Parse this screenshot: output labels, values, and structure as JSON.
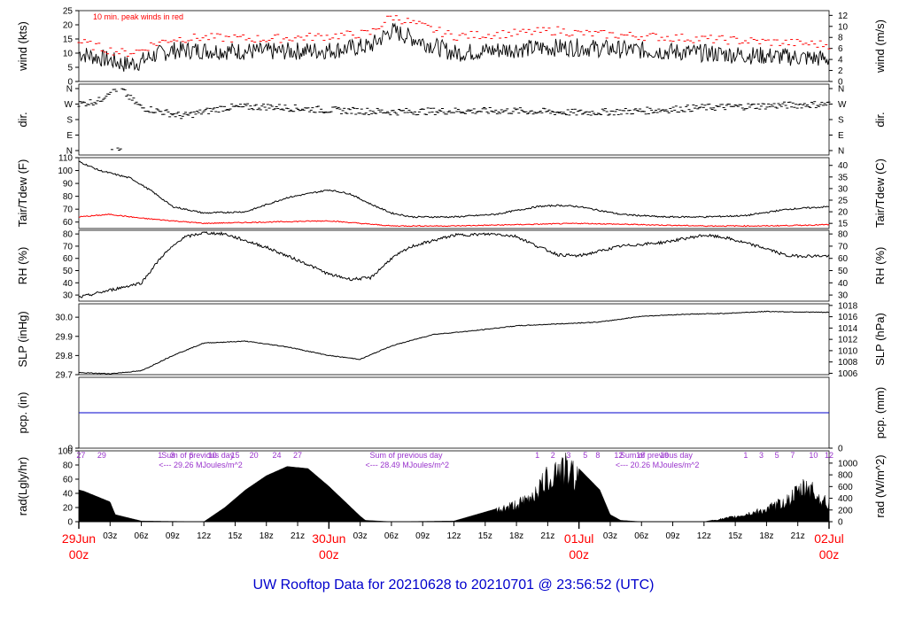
{
  "title": "UW Rooftop Data for 20210628  to  20210701 @ 23:56:52  (UTC)",
  "colors": {
    "wind_peaks": "#ff0000",
    "dewpoint": "#ff0000",
    "pcp": "#0000cc",
    "sun_annot": "#9933cc",
    "date_labels": "#ff0000",
    "title": "#0000cc"
  },
  "chart_data": [
    {
      "type": "line",
      "panel": "wind",
      "ylabel": "wind (kts)",
      "ylabel_right": "wind (m/s)",
      "ylim": [
        0,
        25
      ],
      "ylim_right": [
        0,
        12.9
      ],
      "y_ticks": [
        "0",
        "5",
        "10",
        "15",
        "20",
        "25"
      ],
      "y_ticks_right": [
        "0",
        "2",
        "4",
        "6",
        "8",
        "10",
        "12"
      ],
      "annotation": "10 min. peak winds in red",
      "series": [
        {
          "kind": "wind",
          "x": [
            0,
            3,
            4.5,
            6,
            7,
            9,
            12,
            18,
            24,
            28,
            30,
            36,
            42,
            46,
            48,
            54,
            60,
            66,
            72
          ],
          "values": [
            10,
            7.5,
            6,
            7,
            9,
            11,
            11,
            10.5,
            11,
            12.5,
            18,
            10,
            11.5,
            12,
            12,
            11,
            10,
            9,
            8
          ]
        },
        {
          "kind": "peaks",
          "x": [
            0,
            3,
            4.5,
            6,
            7,
            9,
            12,
            18,
            24,
            28,
            30,
            36,
            42,
            46,
            48,
            54,
            60,
            66,
            72
          ],
          "values": [
            14,
            11,
            10,
            11,
            13,
            15,
            15.5,
            15,
            16,
            17,
            23,
            16,
            17,
            18,
            17,
            16,
            15,
            14,
            13
          ]
        }
      ]
    },
    {
      "type": "scatter",
      "panel": "direction",
      "ylabel": "dir.",
      "ylabel_right": "dir.",
      "y_ticks": [
        "N",
        "W",
        "S",
        "E",
        "N"
      ],
      "y_ticks_right": [
        "N",
        "W",
        "S",
        "E",
        "N"
      ],
      "ylim": [
        0,
        360
      ],
      "series": [
        {
          "kind": "dir",
          "x": [
            0,
            1,
            2,
            3,
            4,
            5,
            6,
            8,
            10,
            14,
            18,
            24,
            30,
            36,
            42,
            48,
            54,
            60,
            66,
            72
          ],
          "values": [
            270,
            280,
            290,
            350,
            360,
            300,
            250,
            225,
            200,
            250,
            255,
            235,
            225,
            230,
            230,
            220,
            230,
            250,
            260,
            270
          ]
        }
      ]
    },
    {
      "type": "line",
      "panel": "temperature",
      "ylabel": "Tair/Tdew (F)",
      "ylabel_right": "Tair/Tdew (C)",
      "ylim": [
        55,
        110
      ],
      "y_ticks": [
        "60",
        "70",
        "80",
        "90",
        "100",
        "110"
      ],
      "y_ticks_right": [
        "15",
        "20",
        "25",
        "30",
        "35",
        "40"
      ],
      "series": [
        {
          "kind": "tair",
          "x": [
            0,
            2,
            5,
            7,
            9,
            12,
            16,
            20,
            24,
            26,
            28,
            30,
            32,
            36,
            40,
            44,
            46,
            48,
            52,
            56,
            60,
            64,
            68,
            72
          ],
          "values": [
            107,
            100,
            94,
            84,
            72,
            67,
            68,
            79,
            85,
            82,
            74,
            67,
            64,
            64,
            66,
            72,
            73,
            72,
            66,
            64,
            64,
            65,
            70,
            72
          ]
        },
        {
          "kind": "tdew",
          "x": [
            0,
            3,
            6,
            9,
            12,
            18,
            24,
            30,
            36,
            42,
            48,
            54,
            60,
            66,
            72
          ],
          "values": [
            64,
            66,
            63,
            61,
            59,
            60,
            61,
            57,
            57,
            58,
            59,
            58,
            57,
            57,
            58
          ]
        }
      ]
    },
    {
      "type": "line",
      "panel": "humidity",
      "ylabel": "RH (%)",
      "ylabel_right": "RH (%)",
      "ylim": [
        25,
        83
      ],
      "y_ticks": [
        "30",
        "40",
        "50",
        "60",
        "70",
        "80"
      ],
      "y_ticks_right": [
        "30",
        "40",
        "50",
        "60",
        "70",
        "80"
      ],
      "series": [
        {
          "kind": "rh",
          "x": [
            0,
            3,
            6,
            8,
            10,
            12,
            14,
            18,
            22,
            24,
            26,
            28,
            30,
            32,
            36,
            40,
            42,
            44,
            46,
            48,
            52,
            56,
            60,
            62,
            66,
            68,
            72
          ],
          "values": [
            28,
            34,
            40,
            62,
            77,
            81,
            80,
            69,
            55,
            47,
            43,
            44,
            60,
            70,
            79,
            80,
            78,
            70,
            63,
            62,
            70,
            73,
            79,
            77,
            68,
            62,
            62
          ]
        }
      ]
    },
    {
      "type": "line",
      "panel": "pressure",
      "ylabel": "SLP (inHg)",
      "ylabel_right": "SLP (hPa)",
      "ylim": [
        29.7,
        30.07
      ],
      "y_ticks": [
        "29.7",
        "29.8",
        "29.9",
        "30.0"
      ],
      "y_ticks_right": [
        "1006",
        "1008",
        "1010",
        "1012",
        "1014",
        "1016",
        "1018"
      ],
      "series": [
        {
          "kind": "slp",
          "x": [
            0,
            3,
            6,
            9,
            12,
            16,
            20,
            24,
            27,
            30,
            34,
            38,
            42,
            46,
            50,
            54,
            58,
            62,
            66,
            72
          ],
          "values": [
            29.71,
            29.705,
            29.72,
            29.8,
            29.865,
            29.875,
            29.845,
            29.8,
            29.78,
            29.85,
            29.91,
            29.93,
            29.955,
            29.965,
            29.975,
            30.005,
            30.015,
            30.02,
            30.03,
            30.025
          ]
        }
      ]
    },
    {
      "type": "line",
      "panel": "precipitation",
      "ylabel": "pcp. (in)",
      "ylabel_right": "pcp. (mm)",
      "ylim": [
        0,
        1
      ],
      "y_ticks": [
        "0"
      ],
      "y_ticks_right": [
        "0"
      ],
      "series": [
        {
          "kind": "pcp",
          "x": [
            0,
            72
          ],
          "values": [
            0,
            0
          ]
        }
      ]
    },
    {
      "type": "area",
      "panel": "radiation",
      "ylabel": "rad(Lgly/hr)",
      "ylabel_right": "rad (W/m^2)",
      "ylim": [
        0,
        100
      ],
      "y_ticks": [
        "0",
        "20",
        "40",
        "60",
        "80",
        "100"
      ],
      "y_ticks_right": [
        "0",
        "200",
        "400",
        "600",
        "800",
        "1000"
      ],
      "series": [
        {
          "kind": "rad",
          "x": [
            0,
            0.5,
            3,
            3.5,
            6,
            12,
            14,
            16,
            18,
            20,
            22,
            24,
            26,
            27,
            27.5,
            30,
            36,
            40,
            42,
            43,
            45,
            46,
            48,
            50,
            51,
            52,
            54,
            60,
            63,
            66,
            68,
            70,
            71,
            72
          ],
          "values": [
            45,
            43,
            28,
            10,
            1,
            0,
            20,
            45,
            65,
            78,
            75,
            50,
            22,
            8,
            2,
            0,
            1,
            18,
            28,
            35,
            70,
            90,
            75,
            45,
            10,
            2,
            0,
            0,
            8,
            20,
            35,
            60,
            40,
            28
          ]
        }
      ],
      "sun_hours_day1": [
        "27",
        "29",
        "1",
        "3",
        "6",
        "10",
        "15",
        "20",
        "24",
        "27"
      ],
      "sun_hours_day2": [
        "1",
        "2",
        "3",
        "5",
        "8",
        "12",
        "16",
        "19"
      ],
      "sun_hours_day3": [
        "1",
        "3",
        "5",
        "7",
        "10",
        "12"
      ],
      "sum_label": "Sum of previous day",
      "sums": [
        "<--- 29.26 MJoules/m^2",
        "<--- 28.49 MJoules/m^2",
        "<--- 20.26 MJoules/m^2"
      ]
    }
  ],
  "x_axis": {
    "hour_labels": [
      "03z",
      "06z",
      "09z",
      "12z",
      "15z",
      "18z",
      "21z",
      "03z",
      "06z",
      "09z",
      "12z",
      "15z",
      "18z",
      "21z",
      "03z",
      "06z",
      "09z",
      "12z",
      "15z",
      "18z",
      "21z"
    ],
    "date_labels": [
      {
        "date": "29Jun",
        "time": "00z"
      },
      {
        "date": "30Jun",
        "time": "00z"
      },
      {
        "date": "01Jul",
        "time": "00z"
      },
      {
        "date": "02Jul",
        "time": "00z"
      }
    ]
  }
}
